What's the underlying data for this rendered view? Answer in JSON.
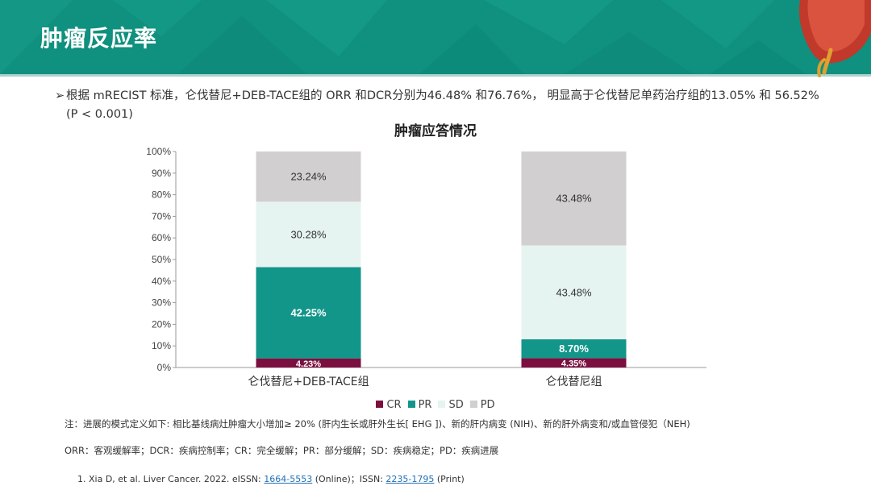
{
  "header": {
    "title": "肿瘤反应率"
  },
  "bullet": {
    "marker": "➢",
    "text": "根据 mRECIST 标准，仑伐替尼+DEB-TACE组的 ORR 和DCR分别为46.48% 和76.76%， 明显高于仑伐替尼单药治疗组的13.05% 和 56.52% (P < 0.001)"
  },
  "chart_data": {
    "type": "bar",
    "stacked": true,
    "title": "肿瘤应答情况",
    "categories": [
      "仑伐替尼+DEB-TACE组",
      "仑伐替尼组"
    ],
    "series": [
      {
        "name": "CR",
        "color": "#7b1040",
        "values": [
          4.23,
          4.35
        ],
        "labels": [
          "4.23%",
          "4.35%"
        ]
      },
      {
        "name": "PR",
        "color": "#13968a",
        "values": [
          42.25,
          8.7
        ],
        "labels": [
          "42.25%",
          "8.70%"
        ]
      },
      {
        "name": "SD",
        "color": "#e6f4f1",
        "values": [
          30.28,
          43.48
        ],
        "labels": [
          "30.28%",
          "43.48%"
        ]
      },
      {
        "name": "PD",
        "color": "#d2cfd0",
        "values": [
          23.24,
          43.48
        ],
        "labels": [
          "23.24%",
          "43.48%"
        ]
      }
    ],
    "yticks": [
      "0%",
      "10%",
      "20%",
      "30%",
      "40%",
      "50%",
      "60%",
      "70%",
      "80%",
      "90%",
      "100%"
    ],
    "ylim": [
      0,
      100
    ],
    "legend_position": "bottom"
  },
  "notes": {
    "line1": "注：进展的模式定义如下: 相比基线病灶肿瘤大小增加≥ 20% (肝内生长或肝外生长[ EHG ])、新的肝内病变 (NIH)、新的肝外病变和/或血管侵犯（NEH)",
    "line2": "ORR：客观缓解率；DCR：疾病控制率；CR：完全缓解；PR：部分缓解；SD：疾病稳定；PD：疾病进展"
  },
  "reference": {
    "prefix": "1. Xia D, et al. Liver Cancer. 2022. eISSN: ",
    "eissn": "1664-5553",
    "mid": " (Online)；ISSN: ",
    "issn": "2235-1795",
    "suffix": " (Print)"
  }
}
